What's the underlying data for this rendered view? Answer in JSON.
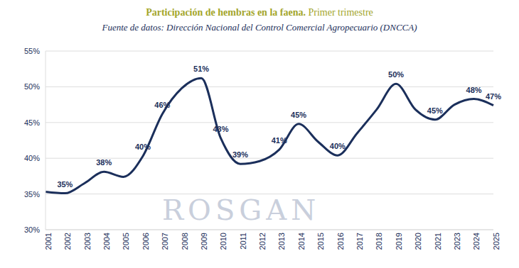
{
  "chart_data": {
    "type": "line",
    "title": "Participación de hembras en la faena. Primer trimestre",
    "subtitle": "Fuente de datos: Dirección Nacional del Control Comercial Agropecuario (DNCCA)",
    "watermark": "ROSGAN",
    "categories": [
      "2001",
      "2002",
      "2003",
      "2004",
      "2005",
      "2006",
      "2007",
      "2008",
      "2009",
      "2010",
      "2011",
      "2012",
      "2013",
      "2014",
      "2015",
      "2016",
      "2017",
      "2018",
      "2019",
      "2020",
      "2021",
      "2023",
      "2024",
      "2025"
    ],
    "values": [
      35.3,
      35.1,
      36.5,
      38.1,
      37.4,
      40.3,
      46.2,
      49.8,
      51.2,
      42.8,
      39.2,
      39.6,
      41.2,
      44.8,
      42.3,
      40.4,
      43.5,
      46.8,
      50.4,
      46.8,
      45.4,
      47.5,
      48.3,
      47.4
    ],
    "value_labels": [
      null,
      "35%",
      null,
      "38%",
      null,
      "40%",
      "46%",
      null,
      "51%",
      "43%",
      "39%",
      null,
      "41%",
      "45%",
      null,
      "40%",
      null,
      null,
      "50%",
      null,
      "45%",
      null,
      "48%",
      "47%"
    ],
    "color": "#1b2f5b",
    "ylim": [
      30,
      55
    ],
    "yticks": [
      {
        "value": 30,
        "label": "30%"
      },
      {
        "value": 35,
        "label": "35%"
      },
      {
        "value": 40,
        "label": "40%"
      },
      {
        "value": 45,
        "label": "45%"
      },
      {
        "value": 50,
        "label": "50%"
      },
      {
        "value": 55,
        "label": "55%"
      }
    ],
    "grid": true,
    "data_labels": true,
    "line_style": "solid",
    "marker": "none"
  }
}
